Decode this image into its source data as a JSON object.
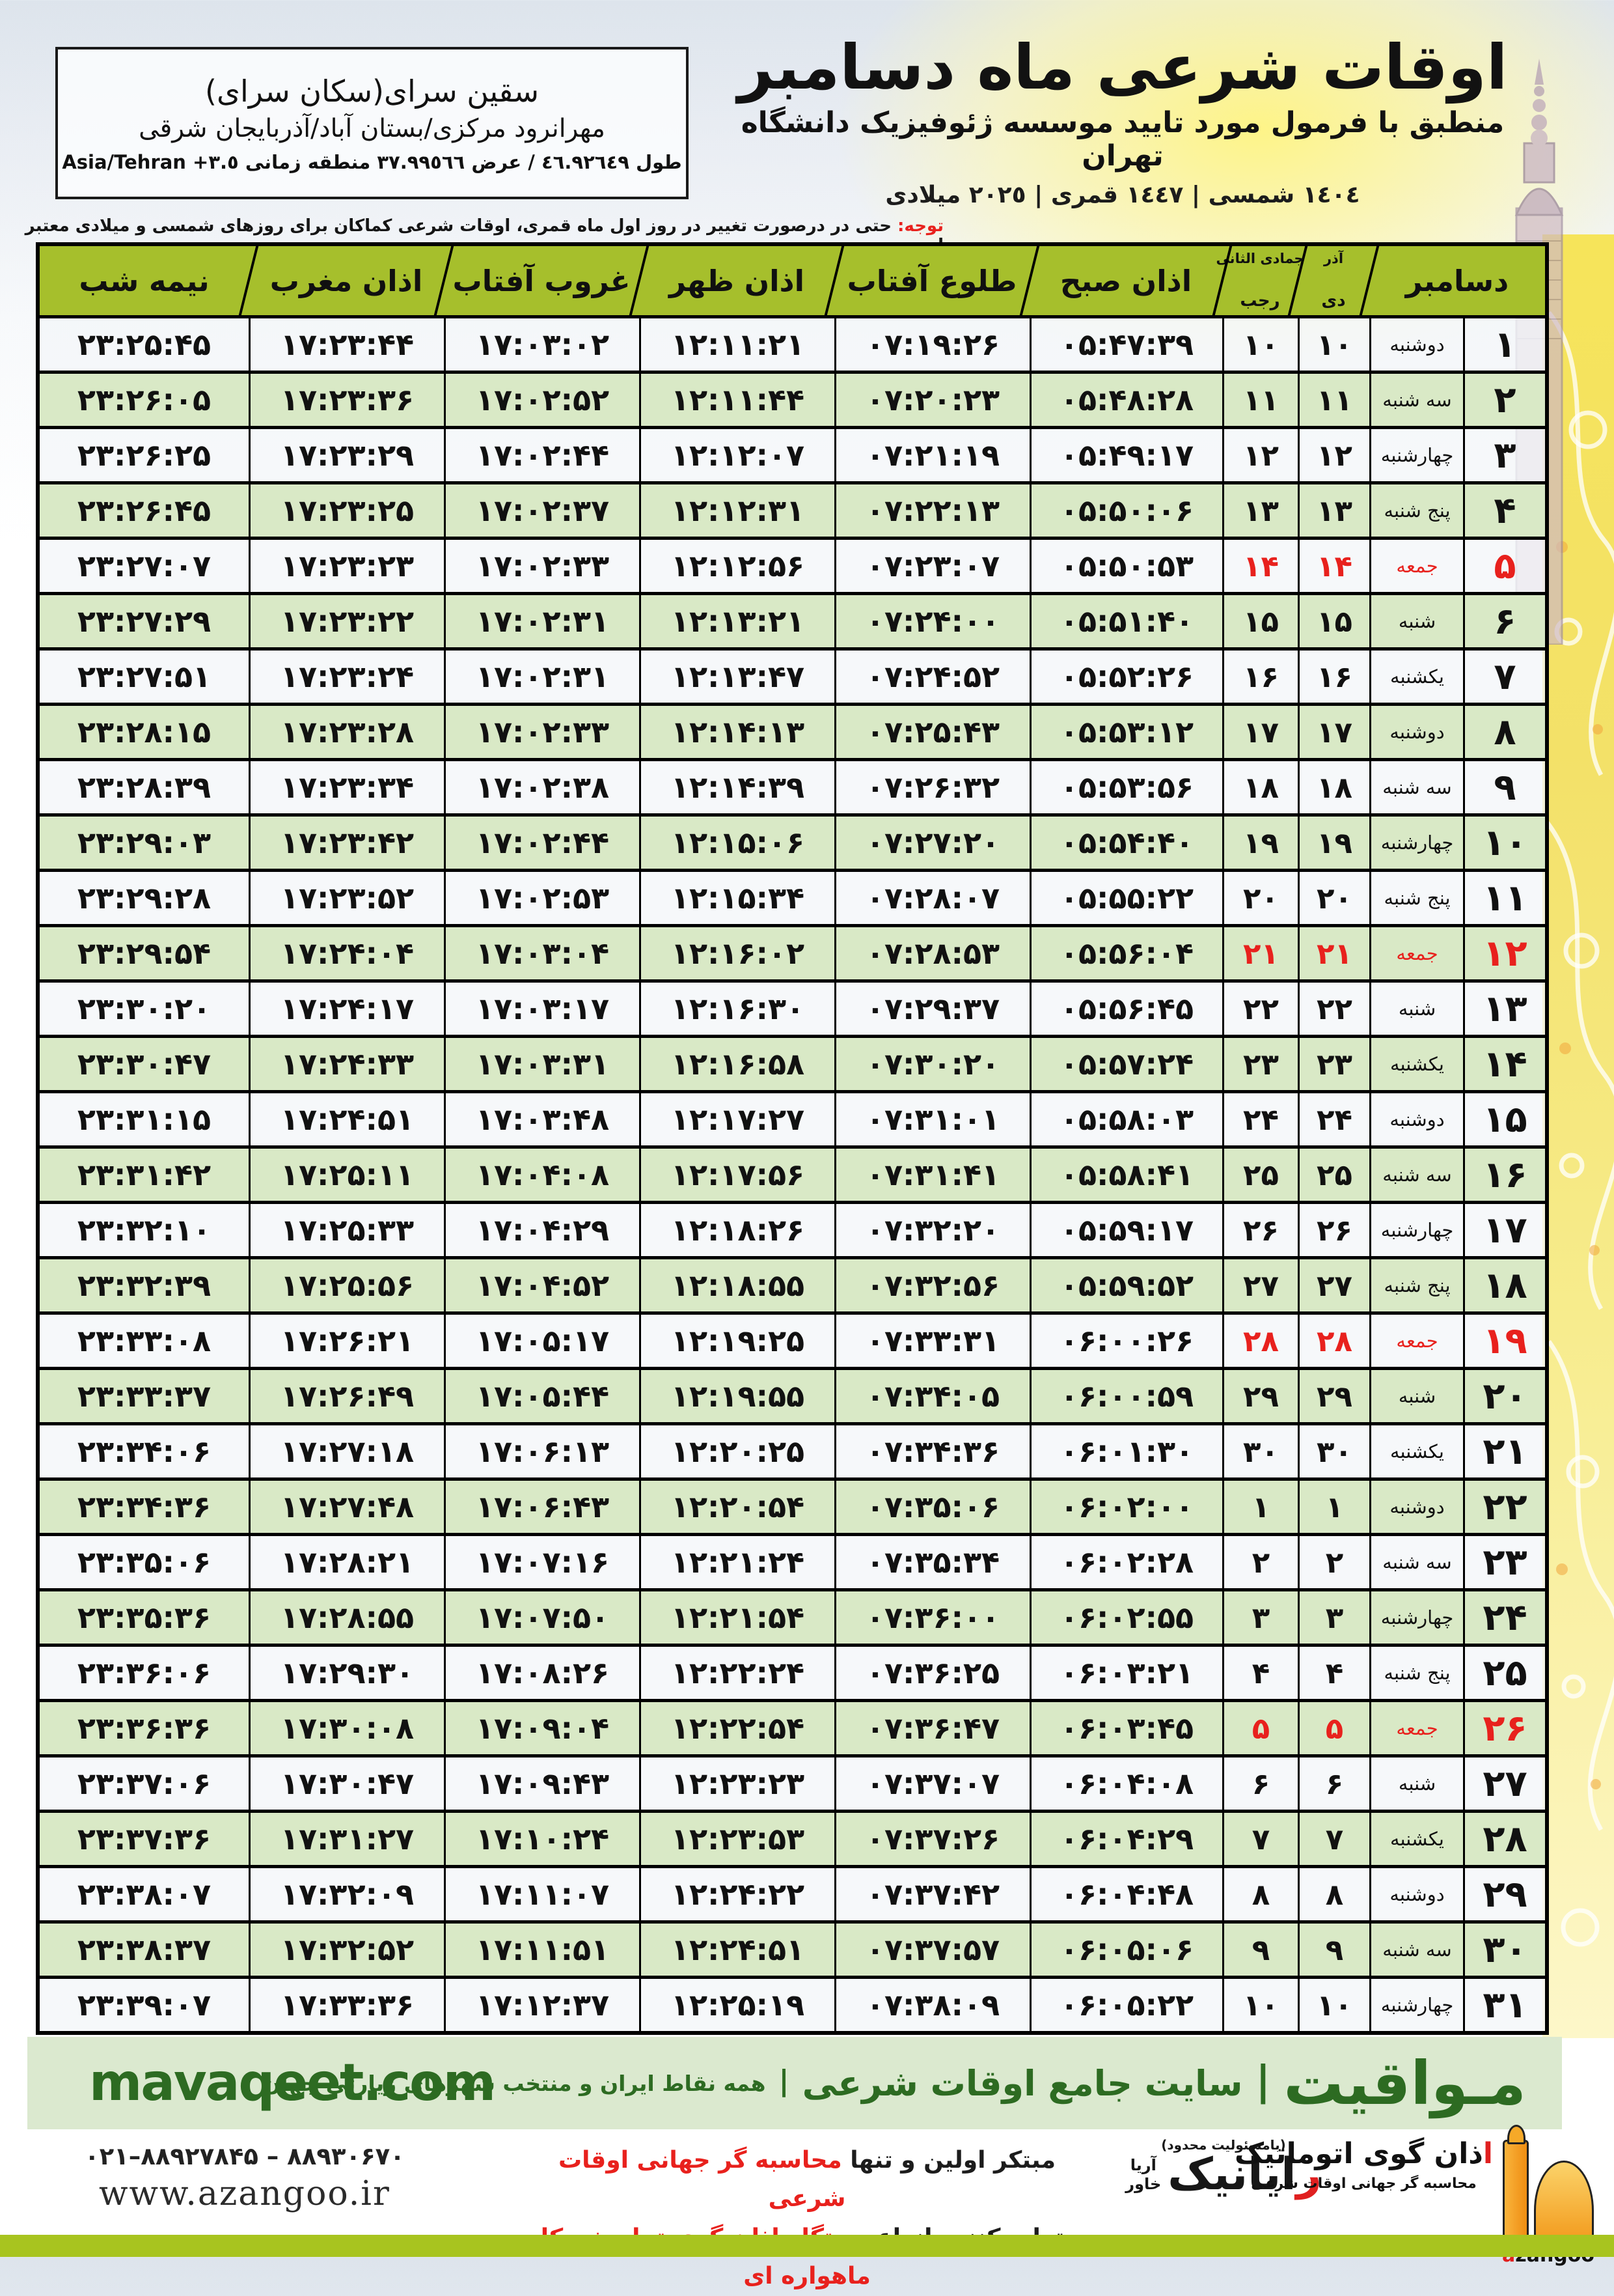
{
  "accent_colors": {
    "header_green": "#a6bf2c",
    "row_green": "#d9e9c6",
    "friday_red": "#e8211d",
    "footer_green_bg": "#dbe9cf",
    "footer_green_text": "#2d6b22",
    "bottom_bar": "#a8c41f"
  },
  "header": {
    "title": "اوقات شرعی ماه دسامبر",
    "subtitle": "منطبق با فرمول مورد تایید موسسه ژئوفیزیک دانشگاه تهران",
    "year_line": "١٤٠٤ شمسی | ١٤٤٧ قمری | ٢٠٢٥ میلادی",
    "location_name": "سقین سرای(سکان سرای)",
    "location_region": "مهرانرود مرکزی/بستان آباد/آذربایجان شرقی",
    "location_coords": "طول ٤٦.٩٢٦٤٩ / عرض ٣٧.٩٩٥٦٦ منطقه زمانی ٣.٥+ Asia/Tehran",
    "notice_label": "توجه:",
    "notice_text": " حتی در درصورت تغییر در روز اول ماه قمری، اوقات شرعی کماکان برای روزهای شمسی و میلادی معتبر است."
  },
  "table": {
    "headers": {
      "december": "دسامبر",
      "persian_month_top": "آذر",
      "persian_month_bottom": "دی",
      "hijri_month_top": "جمادی الثانی",
      "hijri_month_bottom": "رجب",
      "fajr": "اذان صبح",
      "sunrise": "طلوع آفتاب",
      "dhuhr": "اذان ظهر",
      "sunset": "غروب آفتاب",
      "maghrib": "اذان مغرب",
      "midnight": "نیمه شب"
    },
    "rows": [
      {
        "day": 1,
        "weekday": "دوشنبه",
        "persian_day": 10,
        "hijri_day": 10,
        "fajr": "05:47:39",
        "sunrise": "07:19:26",
        "dhuhr": "12:11:21",
        "sunset": "17:03:02",
        "maghrib": "17:23:44",
        "midnight": "23:25:45",
        "friday": false
      },
      {
        "day": 2,
        "weekday": "سه شنبه",
        "persian_day": 11,
        "hijri_day": 11,
        "fajr": "05:48:28",
        "sunrise": "07:20:23",
        "dhuhr": "12:11:44",
        "sunset": "17:02:52",
        "maghrib": "17:23:36",
        "midnight": "23:26:05",
        "friday": false
      },
      {
        "day": 3,
        "weekday": "چهارشنبه",
        "persian_day": 12,
        "hijri_day": 12,
        "fajr": "05:49:17",
        "sunrise": "07:21:19",
        "dhuhr": "12:12:07",
        "sunset": "17:02:44",
        "maghrib": "17:23:29",
        "midnight": "23:26:25",
        "friday": false
      },
      {
        "day": 4,
        "weekday": "پنج شنبه",
        "persian_day": 13,
        "hijri_day": 13,
        "fajr": "05:50:06",
        "sunrise": "07:22:13",
        "dhuhr": "12:12:31",
        "sunset": "17:02:37",
        "maghrib": "17:23:25",
        "midnight": "23:26:45",
        "friday": false
      },
      {
        "day": 5,
        "weekday": "جمعه",
        "persian_day": 14,
        "hijri_day": 14,
        "fajr": "05:50:53",
        "sunrise": "07:23:07",
        "dhuhr": "12:12:56",
        "sunset": "17:02:33",
        "maghrib": "17:23:23",
        "midnight": "23:27:07",
        "friday": true
      },
      {
        "day": 6,
        "weekday": "شنبه",
        "persian_day": 15,
        "hijri_day": 15,
        "fajr": "05:51:40",
        "sunrise": "07:24:00",
        "dhuhr": "12:13:21",
        "sunset": "17:02:31",
        "maghrib": "17:23:22",
        "midnight": "23:27:29",
        "friday": false
      },
      {
        "day": 7,
        "weekday": "یکشنبه",
        "persian_day": 16,
        "hijri_day": 16,
        "fajr": "05:52:26",
        "sunrise": "07:24:52",
        "dhuhr": "12:13:47",
        "sunset": "17:02:31",
        "maghrib": "17:23:24",
        "midnight": "23:27:51",
        "friday": false
      },
      {
        "day": 8,
        "weekday": "دوشنبه",
        "persian_day": 17,
        "hijri_day": 17,
        "fajr": "05:53:12",
        "sunrise": "07:25:43",
        "dhuhr": "12:14:13",
        "sunset": "17:02:33",
        "maghrib": "17:23:28",
        "midnight": "23:28:15",
        "friday": false
      },
      {
        "day": 9,
        "weekday": "سه شنبه",
        "persian_day": 18,
        "hijri_day": 18,
        "fajr": "05:53:56",
        "sunrise": "07:26:32",
        "dhuhr": "12:14:39",
        "sunset": "17:02:38",
        "maghrib": "17:23:34",
        "midnight": "23:28:39",
        "friday": false
      },
      {
        "day": 10,
        "weekday": "چهارشنبه",
        "persian_day": 19,
        "hijri_day": 19,
        "fajr": "05:54:40",
        "sunrise": "07:27:20",
        "dhuhr": "12:15:06",
        "sunset": "17:02:44",
        "maghrib": "17:23:42",
        "midnight": "23:29:03",
        "friday": false
      },
      {
        "day": 11,
        "weekday": "پنج شنبه",
        "persian_day": 20,
        "hijri_day": 20,
        "fajr": "05:55:22",
        "sunrise": "07:28:07",
        "dhuhr": "12:15:34",
        "sunset": "17:02:53",
        "maghrib": "17:23:52",
        "midnight": "23:29:28",
        "friday": false
      },
      {
        "day": 12,
        "weekday": "جمعه",
        "persian_day": 21,
        "hijri_day": 21,
        "fajr": "05:56:04",
        "sunrise": "07:28:53",
        "dhuhr": "12:16:02",
        "sunset": "17:03:04",
        "maghrib": "17:24:04",
        "midnight": "23:29:54",
        "friday": true
      },
      {
        "day": 13,
        "weekday": "شنبه",
        "persian_day": 22,
        "hijri_day": 22,
        "fajr": "05:56:45",
        "sunrise": "07:29:37",
        "dhuhr": "12:16:30",
        "sunset": "17:03:17",
        "maghrib": "17:24:17",
        "midnight": "23:30:20",
        "friday": false
      },
      {
        "day": 14,
        "weekday": "یکشنبه",
        "persian_day": 23,
        "hijri_day": 23,
        "fajr": "05:57:24",
        "sunrise": "07:30:20",
        "dhuhr": "12:16:58",
        "sunset": "17:03:31",
        "maghrib": "17:24:33",
        "midnight": "23:30:47",
        "friday": false
      },
      {
        "day": 15,
        "weekday": "دوشنبه",
        "persian_day": 24,
        "hijri_day": 24,
        "fajr": "05:58:03",
        "sunrise": "07:31:01",
        "dhuhr": "12:17:27",
        "sunset": "17:03:48",
        "maghrib": "17:24:51",
        "midnight": "23:31:15",
        "friday": false
      },
      {
        "day": 16,
        "weekday": "سه شنبه",
        "persian_day": 25,
        "hijri_day": 25,
        "fajr": "05:58:41",
        "sunrise": "07:31:41",
        "dhuhr": "12:17:56",
        "sunset": "17:04:08",
        "maghrib": "17:25:11",
        "midnight": "23:31:42",
        "friday": false
      },
      {
        "day": 17,
        "weekday": "چهارشنبه",
        "persian_day": 26,
        "hijri_day": 26,
        "fajr": "05:59:17",
        "sunrise": "07:32:20",
        "dhuhr": "12:18:26",
        "sunset": "17:04:29",
        "maghrib": "17:25:33",
        "midnight": "23:32:10",
        "friday": false
      },
      {
        "day": 18,
        "weekday": "پنج شنبه",
        "persian_day": 27,
        "hijri_day": 27,
        "fajr": "05:59:52",
        "sunrise": "07:32:56",
        "dhuhr": "12:18:55",
        "sunset": "17:04:52",
        "maghrib": "17:25:56",
        "midnight": "23:32:39",
        "friday": false
      },
      {
        "day": 19,
        "weekday": "جمعه",
        "persian_day": 28,
        "hijri_day": 28,
        "fajr": "06:00:26",
        "sunrise": "07:33:31",
        "dhuhr": "12:19:25",
        "sunset": "17:05:17",
        "maghrib": "17:26:21",
        "midnight": "23:33:08",
        "friday": true
      },
      {
        "day": 20,
        "weekday": "شنبه",
        "persian_day": 29,
        "hijri_day": 29,
        "fajr": "06:00:59",
        "sunrise": "07:34:05",
        "dhuhr": "12:19:55",
        "sunset": "17:05:44",
        "maghrib": "17:26:49",
        "midnight": "23:33:37",
        "friday": false
      },
      {
        "day": 21,
        "weekday": "یکشنبه",
        "persian_day": 30,
        "hijri_day": 30,
        "fajr": "06:01:30",
        "sunrise": "07:34:36",
        "dhuhr": "12:20:25",
        "sunset": "17:06:13",
        "maghrib": "17:27:18",
        "midnight": "23:34:06",
        "friday": false
      },
      {
        "day": 22,
        "weekday": "دوشنبه",
        "persian_day": 1,
        "hijri_day": 1,
        "fajr": "06:02:00",
        "sunrise": "07:35:06",
        "dhuhr": "12:20:54",
        "sunset": "17:06:43",
        "maghrib": "17:27:48",
        "midnight": "23:34:36",
        "friday": false
      },
      {
        "day": 23,
        "weekday": "سه شنبه",
        "persian_day": 2,
        "hijri_day": 2,
        "fajr": "06:02:28",
        "sunrise": "07:35:34",
        "dhuhr": "12:21:24",
        "sunset": "17:07:16",
        "maghrib": "17:28:21",
        "midnight": "23:35:06",
        "friday": false
      },
      {
        "day": 24,
        "weekday": "چهارشنبه",
        "persian_day": 3,
        "hijri_day": 3,
        "fajr": "06:02:55",
        "sunrise": "07:36:00",
        "dhuhr": "12:21:54",
        "sunset": "17:07:50",
        "maghrib": "17:28:55",
        "midnight": "23:35:36",
        "friday": false
      },
      {
        "day": 25,
        "weekday": "پنج شنبه",
        "persian_day": 4,
        "hijri_day": 4,
        "fajr": "06:03:21",
        "sunrise": "07:36:25",
        "dhuhr": "12:22:24",
        "sunset": "17:08:26",
        "maghrib": "17:29:30",
        "midnight": "23:36:06",
        "friday": false
      },
      {
        "day": 26,
        "weekday": "جمعه",
        "persian_day": 5,
        "hijri_day": 5,
        "fajr": "06:03:45",
        "sunrise": "07:36:47",
        "dhuhr": "12:22:54",
        "sunset": "17:09:04",
        "maghrib": "17:30:08",
        "midnight": "23:36:36",
        "friday": true
      },
      {
        "day": 27,
        "weekday": "شنبه",
        "persian_day": 6,
        "hijri_day": 6,
        "fajr": "06:04:08",
        "sunrise": "07:37:07",
        "dhuhr": "12:23:23",
        "sunset": "17:09:43",
        "maghrib": "17:30:47",
        "midnight": "23:37:06",
        "friday": false
      },
      {
        "day": 28,
        "weekday": "یکشنبه",
        "persian_day": 7,
        "hijri_day": 7,
        "fajr": "06:04:29",
        "sunrise": "07:37:26",
        "dhuhr": "12:23:53",
        "sunset": "17:10:24",
        "maghrib": "17:31:27",
        "midnight": "23:37:36",
        "friday": false
      },
      {
        "day": 29,
        "weekday": "دوشنبه",
        "persian_day": 8,
        "hijri_day": 8,
        "fajr": "06:04:48",
        "sunrise": "07:37:42",
        "dhuhr": "12:24:22",
        "sunset": "17:11:07",
        "maghrib": "17:32:09",
        "midnight": "23:38:07",
        "friday": false
      },
      {
        "day": 30,
        "weekday": "سه شنبه",
        "persian_day": 9,
        "hijri_day": 9,
        "fajr": "06:05:06",
        "sunrise": "07:37:57",
        "dhuhr": "12:24:51",
        "sunset": "17:11:51",
        "maghrib": "17:32:52",
        "midnight": "23:38:37",
        "friday": false
      },
      {
        "day": 31,
        "weekday": "چهارشنبه",
        "persian_day": 10,
        "hijri_day": 10,
        "fajr": "06:05:22",
        "sunrise": "07:38:09",
        "dhuhr": "12:25:19",
        "sunset": "17:12:37",
        "maghrib": "17:33:36",
        "midnight": "23:39:07",
        "friday": false
      }
    ]
  },
  "mavaqeet_bar": {
    "brand": "مـواقیت",
    "site_desc": "سایت جامع اوقات شرعی",
    "tagline": "همه نقاط ایران و منتخب شهرهای زیارتی جهان",
    "url": "mavaqeet.com",
    "separator": "|"
  },
  "footer": {
    "phones": "۰۲۱–۸۸۹۲۷۸۴۵ – ۸۸۹۳۰۶۷۰",
    "url": "www.azangoo.ir",
    "line1_black": "مبتکر اولین و تنها ",
    "line1_red": "محاسبه گر جهانی اوقات شرعی",
    "line2_black": "و تولید کننده انواع ",
    "line2_red": "دستگاه اذان گوی تمام خودکار ماهواره ای",
    "rayanik_llc": "(بامسئولیت محدود)",
    "rayanik_first_letter": "ر",
    "rayanik_rest": "ایانیک",
    "rayanik_sub1": "آریا",
    "rayanik_sub2": "خاور",
    "azangoo_title_first": "ا",
    "azangoo_title_rest": "ذان گوی اتوماتیک",
    "azangoo_sub": "محاسبه گر جهانی اوقات شرعی",
    "azangoo_latin_first": "a",
    "azangoo_latin_rest": "zangoo"
  }
}
